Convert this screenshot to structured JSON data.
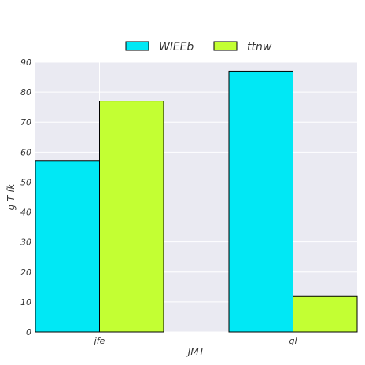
{
  "chart_data": {
    "type": "bar",
    "categories": [
      "jfe",
      "gl"
    ],
    "series": [
      {
        "name": "WlEEb",
        "values": [
          57,
          87
        ],
        "color": "#00e8f5"
      },
      {
        "name": "ttnw",
        "values": [
          77,
          12
        ],
        "color": "#c3ff33"
      }
    ],
    "xlabel": "JMT",
    "ylabel": "g T fk",
    "ylim": [
      0,
      90
    ],
    "yticks": [
      0,
      10,
      20,
      30,
      40,
      50,
      60,
      70,
      80,
      90
    ],
    "grid": true,
    "legend": "top-center",
    "background": "#eaeaf2",
    "gridColor": "#ffffff"
  }
}
